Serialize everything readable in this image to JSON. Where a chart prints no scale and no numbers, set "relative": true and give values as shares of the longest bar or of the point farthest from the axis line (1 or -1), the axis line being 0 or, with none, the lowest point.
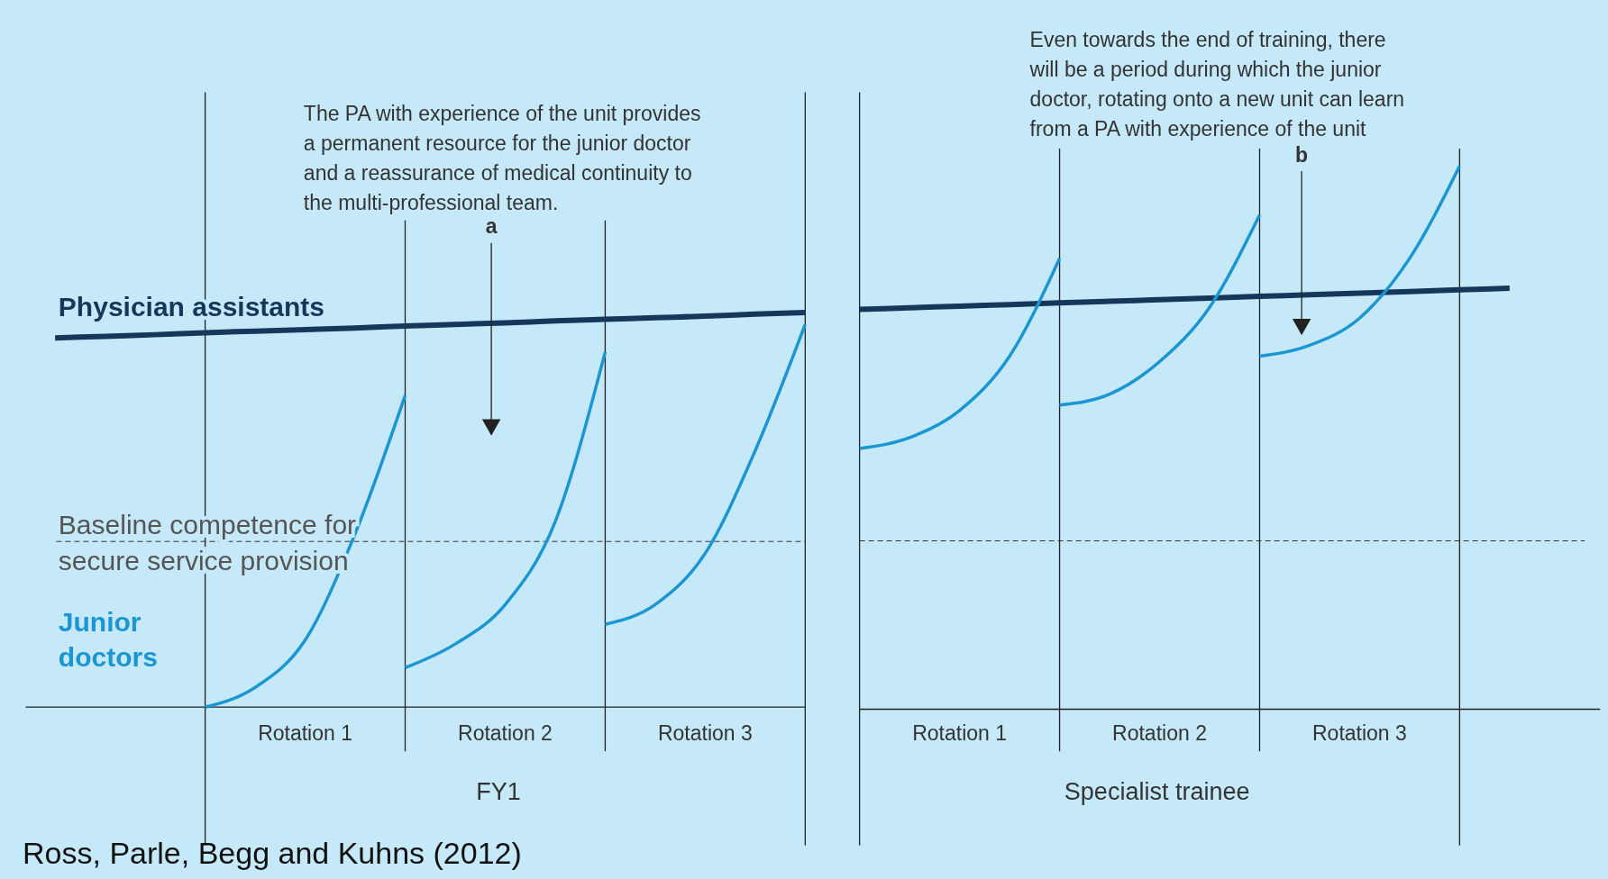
{
  "chart_data": [
    {
      "type": "line",
      "relative": true,
      "grid": "x",
      "xlabel": "FY1",
      "categories": [
        null,
        null,
        null,
        null,
        null,
        "Rotation 1",
        null,
        null,
        null,
        "Rotation 2",
        null,
        null,
        null,
        "Rotation 3",
        null,
        null
      ],
      "series": [
        {
          "name": "Physician assistants",
          "color": "#14375a",
          "values": [
            0.936,
            0.94,
            0.944,
            0.949,
            0.953,
            0.957,
            0.961,
            0.966,
            0.97,
            0.974,
            0.979,
            0.983,
            0.987,
            0.991,
            0.996,
            1.0
          ]
        },
        {
          "name": "Junior doctors",
          "color": "#1b96d2",
          "values": [
            null,
            null,
            null,
            0,
            0.05,
            0.17,
            0.44,
            0.79,
            null,
            null,
            null,
            null,
            null,
            null,
            null,
            null
          ]
        },
        {
          "color": "#1b96d2",
          "values": [
            null,
            null,
            null,
            null,
            null,
            null,
            null,
            0.1,
            0.16,
            0.26,
            0.47,
            0.9,
            null,
            null,
            null,
            null
          ]
        },
        {
          "color": "#1b96d2",
          "values": [
            null,
            null,
            null,
            null,
            null,
            null,
            null,
            null,
            null,
            null,
            null,
            0.21,
            0.26,
            0.39,
            0.65,
            0.97
          ]
        }
      ],
      "ref_lines": [
        {
          "axis": "y",
          "value": 0.42,
          "label": "Baseline competence for secure service provision",
          "line_style": "dashed"
        }
      ],
      "annotations": [
        "The PA with experience of the unit provides a permanent resource for the junior doctor and a reassurance of medical continuity to the multi-professional team.",
        "a",
        "Ross, Parle, Begg and Kuhns (2012)"
      ]
    },
    {
      "type": "line",
      "relative": true,
      "grid": "x",
      "xlabel": "Specialist trainee",
      "categories": [
        null,
        null,
        "Rotation 1",
        null,
        null,
        null,
        "Rotation 2",
        null,
        null,
        null,
        "Rotation 3",
        null,
        null,
        null,
        null
      ],
      "series": [
        {
          "color": "#14375a",
          "values": [
            0.736,
            0.739,
            0.742,
            0.745,
            0.748,
            0.751,
            0.754,
            0.757,
            0.76,
            0.763,
            0.766,
            0.769,
            0.772,
            0.775,
            null
          ]
        },
        {
          "color": "#1b96d2",
          "values": [
            0.48,
            0.5,
            0.55,
            0.65,
            0.83,
            null,
            null,
            null,
            null,
            null,
            null,
            null,
            null,
            null,
            null
          ]
        },
        {
          "color": "#1b96d2",
          "values": [
            null,
            null,
            null,
            null,
            0.56,
            0.58,
            0.64,
            0.74,
            0.91,
            null,
            null,
            null,
            null,
            null,
            null
          ]
        },
        {
          "color": "#1b96d2",
          "values": [
            null,
            null,
            null,
            null,
            null,
            null,
            null,
            null,
            0.65,
            0.67,
            0.72,
            0.83,
            1.0,
            null,
            null
          ]
        }
      ],
      "ref_lines": [
        {
          "axis": "y",
          "value": 0.31,
          "line_style": "dashed"
        }
      ],
      "annotations": [
        "Even towards the end of training, there will be a period during which the junior doctor, rotating onto a new unit can learn from a PA with experience of the unit",
        "b"
      ]
    }
  ]
}
